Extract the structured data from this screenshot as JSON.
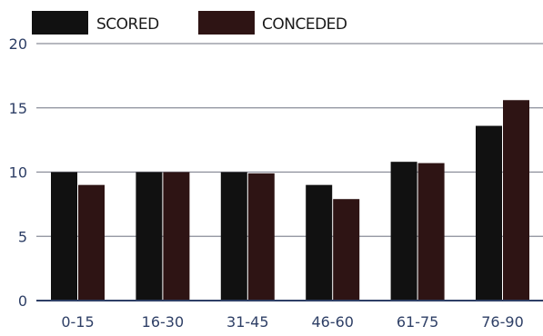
{
  "chart_data": {
    "type": "bar",
    "categories": [
      "0-15",
      "16-30",
      "31-45",
      "46-60",
      "61-75",
      "76-90"
    ],
    "series": [
      {
        "name": "SCORED",
        "values": [
          10,
          10,
          10,
          9,
          10.8,
          13.6
        ],
        "color": "#111111"
      },
      {
        "name": "CONCEDED",
        "values": [
          9,
          10,
          9.9,
          7.9,
          10.7,
          15.6
        ],
        "color": "#2e1414"
      }
    ],
    "ylim": [
      0,
      20
    ],
    "yticks": [
      "0",
      "5",
      "10",
      "15",
      "20"
    ],
    "grid": true,
    "legend_position": "top-left"
  }
}
